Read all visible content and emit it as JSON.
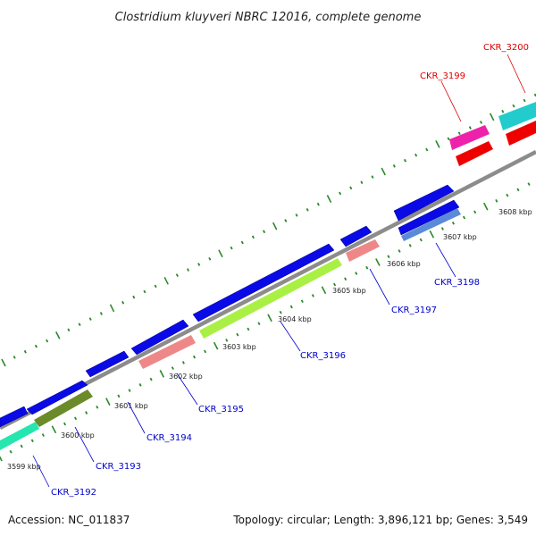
{
  "title": "Clostridium kluyveri NBRC 12016, complete genome",
  "footer": {
    "accession": "Accession: NC_011837",
    "topology": "Topology: circular; Length: 3,896,121 bp; Genes: 3,549"
  },
  "colors": {
    "forward_label": "#0000cc",
    "reverse_label": "#dd0000",
    "backbone": "#888888",
    "tick": "#2a8a2a"
  },
  "kbp_labels": [
    "3599 kbp",
    "3600 kbp",
    "3601 kbp",
    "3602 kbp",
    "3603 kbp",
    "3604 kbp",
    "3605 kbp",
    "3606 kbp",
    "3607 kbp",
    "3608 kbp"
  ],
  "gene_labels": [
    {
      "text": "CKR_3192",
      "strand": "forward"
    },
    {
      "text": "CKR_3193",
      "strand": "forward"
    },
    {
      "text": "CKR_3194",
      "strand": "forward"
    },
    {
      "text": "CKR_3195",
      "strand": "forward"
    },
    {
      "text": "CKR_3196",
      "strand": "forward"
    },
    {
      "text": "CKR_3197",
      "strand": "forward"
    },
    {
      "text": "CKR_3198",
      "strand": "forward"
    },
    {
      "text": "CKR_3199",
      "strand": "reverse"
    },
    {
      "text": "CKR_3200",
      "strand": "reverse"
    }
  ]
}
